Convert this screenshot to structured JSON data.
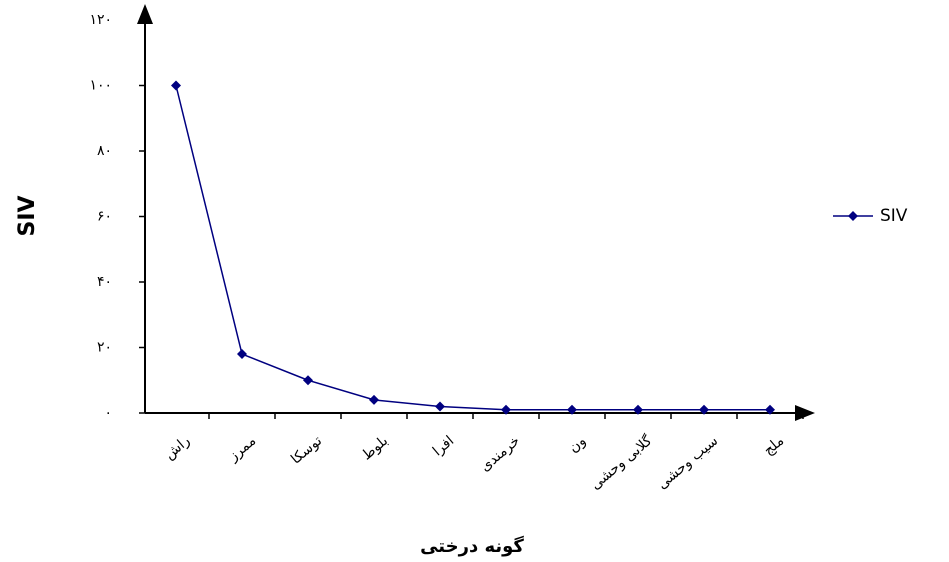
{
  "chart_data": {
    "type": "line",
    "x_label": "گونه درختی",
    "y_label": "SIV",
    "categories": [
      "راش",
      "ممرز",
      "توسکا",
      "بلوط",
      "افرا",
      "خرمندی",
      "ون",
      "گلابی وحشی",
      "سیب وحشی",
      "ملج"
    ],
    "series": [
      {
        "name": "SIV",
        "color": "#000080",
        "values": [
          100,
          18,
          10,
          4,
          2,
          1,
          1,
          1,
          1,
          1
        ]
      }
    ],
    "ylim": [
      0,
      120
    ],
    "yticks": [
      {
        "value": 0,
        "label": "۰"
      },
      {
        "value": 20,
        "label": "۲۰"
      },
      {
        "value": 40,
        "label": "۴۰"
      },
      {
        "value": 60,
        "label": "۶۰"
      },
      {
        "value": 80,
        "label": "۸۰"
      },
      {
        "value": 100,
        "label": "۱۰۰"
      },
      {
        "value": 120,
        "label": "۱۲۰"
      }
    ],
    "grid": false,
    "legend": "right"
  }
}
